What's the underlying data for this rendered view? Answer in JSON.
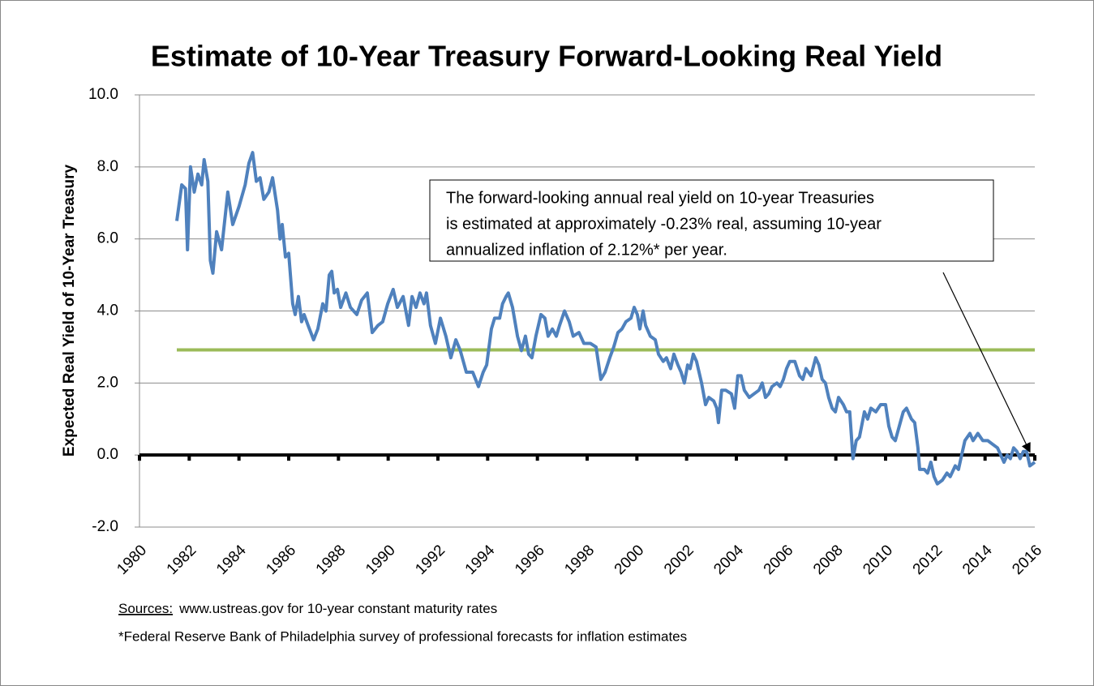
{
  "chart_data": {
    "type": "line",
    "title": "Estimate of 10-Year Treasury Forward-Looking Real Yield",
    "y_label": "Expected Real Yield of 10-Year Treasury",
    "xlim": [
      1980,
      2016
    ],
    "xticks": [
      1980,
      1982,
      1984,
      1986,
      1988,
      1990,
      1992,
      1994,
      1996,
      1998,
      2000,
      2002,
      2004,
      2006,
      2008,
      2010,
      2012,
      2014,
      2016
    ],
    "ylim": [
      -2,
      10
    ],
    "yticks": [
      {
        "value": -2,
        "label": "-2.0"
      },
      {
        "value": 0,
        "label": "0.0"
      },
      {
        "value": 2,
        "label": "2.0"
      },
      {
        "value": 4,
        "label": "4.0"
      },
      {
        "value": 6,
        "label": "6.0"
      },
      {
        "value": 8,
        "label": "8.0"
      },
      {
        "value": 10,
        "label": "10.0"
      }
    ],
    "grid": true,
    "x": [
      1981.5,
      1981.7,
      1981.85,
      1981.93,
      1982.05,
      1982.2,
      1982.35,
      1982.5,
      1982.6,
      1982.75,
      1982.85,
      1982.95,
      1983.1,
      1983.3,
      1983.55,
      1983.75,
      1984.0,
      1984.25,
      1984.4,
      1984.55,
      1984.7,
      1984.85,
      1985.0,
      1985.2,
      1985.35,
      1985.55,
      1985.65,
      1985.74,
      1985.87,
      1986.0,
      1986.16,
      1986.26,
      1986.39,
      1986.52,
      1986.62,
      1986.78,
      1987.0,
      1987.17,
      1987.37,
      1987.5,
      1987.63,
      1987.73,
      1987.83,
      1987.96,
      1988.09,
      1988.3,
      1988.48,
      1988.74,
      1988.93,
      1989.16,
      1989.36,
      1989.59,
      1989.78,
      1989.98,
      1990.2,
      1990.37,
      1990.6,
      1990.82,
      1990.96,
      1991.12,
      1991.28,
      1991.44,
      1991.54,
      1991.7,
      1991.9,
      1992.1,
      1992.32,
      1992.52,
      1992.72,
      1992.9,
      1993.14,
      1993.4,
      1993.63,
      1993.82,
      1993.96,
      1994.15,
      1994.28,
      1994.48,
      1994.6,
      1994.74,
      1994.83,
      1995.0,
      1995.2,
      1995.36,
      1995.52,
      1995.65,
      1995.78,
      1995.94,
      1996.14,
      1996.3,
      1996.43,
      1996.6,
      1996.76,
      1996.89,
      1997.09,
      1997.28,
      1997.44,
      1997.67,
      1997.87,
      1998.13,
      1998.36,
      1998.55,
      1998.72,
      1998.91,
      1999.07,
      1999.24,
      1999.4,
      1999.56,
      1999.76,
      1999.89,
      2000.02,
      2000.12,
      2000.25,
      2000.35,
      2000.54,
      2000.74,
      2000.87,
      2001.06,
      2001.19,
      2001.36,
      2001.49,
      2001.65,
      2001.78,
      2001.91,
      2002.04,
      2002.14,
      2002.27,
      2002.4,
      2002.6,
      2002.76,
      2002.89,
      2003.09,
      2003.21,
      2003.28,
      2003.41,
      2003.57,
      2003.8,
      2003.93,
      2004.06,
      2004.19,
      2004.32,
      2004.52,
      2004.71,
      2004.91,
      2005.04,
      2005.17,
      2005.3,
      2005.43,
      2005.63,
      2005.76,
      2005.89,
      2006.02,
      2006.15,
      2006.35,
      2006.54,
      2006.67,
      2006.8,
      2007.0,
      2007.19,
      2007.32,
      2007.45,
      2007.58,
      2007.71,
      2007.85,
      2007.98,
      2008.11,
      2008.3,
      2008.43,
      2008.56,
      2008.69,
      2008.82,
      2008.95,
      2009.15,
      2009.28,
      2009.41,
      2009.61,
      2009.8,
      2010.0,
      2010.13,
      2010.26,
      2010.39,
      2010.59,
      2010.71,
      2010.84,
      2011.04,
      2011.17,
      2011.3,
      2011.37,
      2011.56,
      2011.69,
      2011.82,
      2011.95,
      2012.08,
      2012.28,
      2012.47,
      2012.6,
      2012.8,
      2012.93,
      2013.06,
      2013.19,
      2013.39,
      2013.52,
      2013.71,
      2013.91,
      2014.11,
      2014.3,
      2014.5,
      2014.63,
      2014.76,
      2014.89,
      2015.02,
      2015.15,
      2015.28,
      2015.41,
      2015.54,
      2015.67,
      2015.8,
      2016.0
    ],
    "series": [
      {
        "color": "#4f81bd",
        "values": [
          6.5,
          7.5,
          7.4,
          5.7,
          8.0,
          7.3,
          7.8,
          7.5,
          8.2,
          7.6,
          5.4,
          5.05,
          6.2,
          5.7,
          7.3,
          6.4,
          6.9,
          7.5,
          8.1,
          8.4,
          7.6,
          7.7,
          7.1,
          7.3,
          7.7,
          6.8,
          6.0,
          6.4,
          5.5,
          5.6,
          4.2,
          3.9,
          4.4,
          3.7,
          3.9,
          3.6,
          3.2,
          3.5,
          4.2,
          4.0,
          5.0,
          5.1,
          4.5,
          4.6,
          4.1,
          4.5,
          4.1,
          3.9,
          4.3,
          4.5,
          3.4,
          3.6,
          3.7,
          4.2,
          4.6,
          4.1,
          4.4,
          3.6,
          4.4,
          4.1,
          4.5,
          4.2,
          4.5,
          3.6,
          3.1,
          3.8,
          3.3,
          2.7,
          3.2,
          2.9,
          2.3,
          2.3,
          1.9,
          2.3,
          2.5,
          3.5,
          3.8,
          3.8,
          4.2,
          4.4,
          4.5,
          4.1,
          3.3,
          2.9,
          3.3,
          2.8,
          2.7,
          3.3,
          3.9,
          3.8,
          3.3,
          3.5,
          3.3,
          3.6,
          4.0,
          3.7,
          3.3,
          3.4,
          3.1,
          3.1,
          3.0,
          2.1,
          2.3,
          2.7,
          3.0,
          3.4,
          3.5,
          3.7,
          3.8,
          4.1,
          3.9,
          3.5,
          4.0,
          3.6,
          3.3,
          3.2,
          2.8,
          2.6,
          2.7,
          2.4,
          2.8,
          2.5,
          2.3,
          2.0,
          2.5,
          2.4,
          2.8,
          2.6,
          2.0,
          1.4,
          1.6,
          1.5,
          1.3,
          0.9,
          1.8,
          1.8,
          1.7,
          1.3,
          2.2,
          2.2,
          1.8,
          1.6,
          1.7,
          1.8,
          2.0,
          1.6,
          1.7,
          1.9,
          2.0,
          1.9,
          2.1,
          2.4,
          2.6,
          2.6,
          2.2,
          2.1,
          2.4,
          2.2,
          2.7,
          2.5,
          2.1,
          2.0,
          1.6,
          1.3,
          1.2,
          1.6,
          1.4,
          1.2,
          1.2,
          -0.1,
          0.4,
          0.5,
          1.2,
          1.0,
          1.3,
          1.2,
          1.4,
          1.4,
          0.8,
          0.5,
          0.4,
          0.9,
          1.2,
          1.3,
          1.0,
          0.9,
          0.2,
          -0.4,
          -0.4,
          -0.5,
          -0.2,
          -0.6,
          -0.8,
          -0.7,
          -0.5,
          -0.6,
          -0.3,
          -0.4,
          0.0,
          0.4,
          0.6,
          0.4,
          0.6,
          0.4,
          0.4,
          0.3,
          0.2,
          0.0,
          -0.2,
          0.0,
          -0.1,
          0.2,
          0.1,
          -0.1,
          0.1,
          0.1,
          -0.3,
          -0.2
        ]
      }
    ],
    "reference_lines": [
      {
        "value": 2.92,
        "color": "#9bbb59",
        "x": [
          1981.5,
          2016
        ]
      }
    ],
    "zero_line_color": "#000000",
    "annotation": {
      "lines": [
        "The forward-looking annual real yield on 10-year Treasuries",
        "is estimated at approximately -0.23% real, assuming 10-year",
        "annualized inflation of 2.12%* per year."
      ],
      "target": [
        2016,
        -0.23
      ]
    },
    "sources": {
      "label": "Sources:",
      "text": "www.ustreas.gov for 10-year constant maturity rates",
      "note": "*Federal Reserve Bank of Philadelphia survey of professional forecasts for inflation estimates"
    }
  }
}
